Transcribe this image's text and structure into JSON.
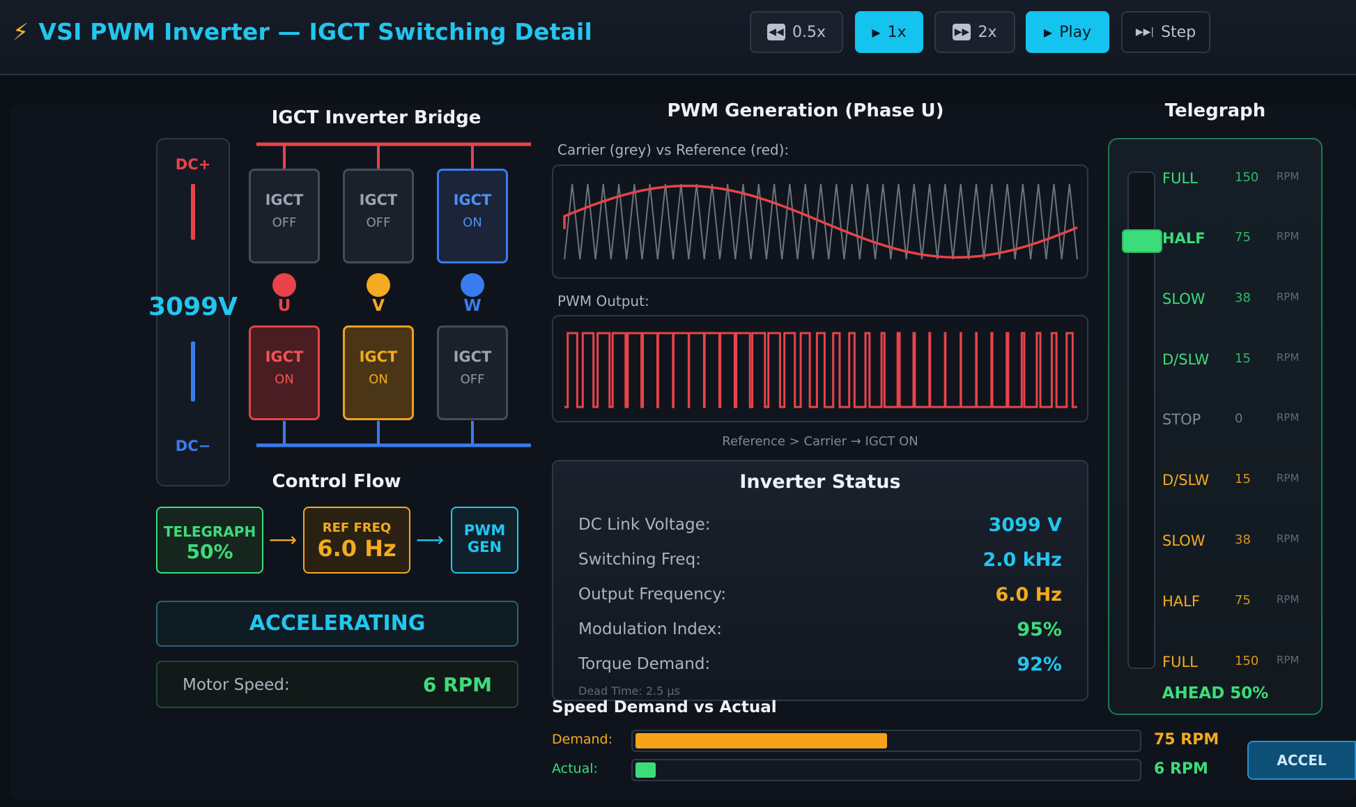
{
  "header": {
    "title": "VSI PWM Inverter — IGCT Switching Detail",
    "bolt": "⚡",
    "speed_05": "0.5x",
    "speed_1": "1x",
    "speed_2": "2x",
    "play": "Play",
    "step": "Step"
  },
  "bridge": {
    "title": "IGCT Inverter Bridge",
    "dc_plus": "DC+",
    "dc_minus": "DC−",
    "voltage": "3099V",
    "upper": [
      {
        "label": "IGCT",
        "state": "OFF"
      },
      {
        "label": "IGCT",
        "state": "OFF"
      },
      {
        "label": "IGCT",
        "state": "ON"
      }
    ],
    "lower": [
      {
        "label": "IGCT",
        "state": "ON"
      },
      {
        "label": "IGCT",
        "state": "ON"
      },
      {
        "label": "IGCT",
        "state": "OFF"
      }
    ],
    "phases": [
      "U",
      "V",
      "W"
    ]
  },
  "control_flow": {
    "title": "Control Flow",
    "telegraph_label": "TELEGRAPH",
    "telegraph_value": "50%",
    "ref_label": "REF FREQ",
    "ref_value": "6.0 Hz",
    "pwm_line1": "PWM",
    "pwm_line2": "GEN"
  },
  "state_banner": "ACCELERATING",
  "motor_speed": {
    "label": "Motor Speed:",
    "value": "6 RPM"
  },
  "pwm": {
    "title": "PWM Generation (Phase U)",
    "carrier_caption": "Carrier (grey) vs Reference (red):",
    "output_caption": "PWM Output:",
    "rule": "Reference > Carrier → IGCT ON",
    "carrier_cycles": 33,
    "modulation_index": 0.95
  },
  "status": {
    "title": "Inverter Status",
    "rows": [
      {
        "label": "DC Link Voltage:",
        "value": "3099 V"
      },
      {
        "label": "Switching Freq:",
        "value": "2.0 kHz"
      },
      {
        "label": "Output Frequency:",
        "value": "6.0 Hz"
      },
      {
        "label": "Modulation Index:",
        "value": "95%"
      },
      {
        "label": "Torque Demand:",
        "value": "92%"
      }
    ],
    "dead_time": "Dead Time: 2.5 μs"
  },
  "speed_bars": {
    "title": "Speed Demand vs Actual",
    "demand_label": "Demand:",
    "demand_value": "75 RPM",
    "demand_fraction": 0.5,
    "actual_label": "Actual:",
    "actual_value": "6 RPM",
    "actual_fraction": 0.04
  },
  "accel_button": "ACCEL",
  "telegraph": {
    "title": "Telegraph",
    "notches": [
      {
        "name": "FULL",
        "rpm": "150",
        "unit": "RPM"
      },
      {
        "name": "HALF",
        "rpm": "75",
        "unit": "RPM"
      },
      {
        "name": "SLOW",
        "rpm": "38",
        "unit": "RPM"
      },
      {
        "name": "D/SLW",
        "rpm": "15",
        "unit": "RPM"
      },
      {
        "name": "STOP",
        "rpm": "0",
        "unit": "RPM"
      },
      {
        "name": "D/SLW",
        "rpm": "15",
        "unit": "RPM"
      },
      {
        "name": "SLOW",
        "rpm": "38",
        "unit": "RPM"
      },
      {
        "name": "HALF",
        "rpm": "75",
        "unit": "RPM"
      },
      {
        "name": "FULL",
        "rpm": "150",
        "unit": "RPM"
      }
    ],
    "selected_index": 1,
    "readout": "AHEAD 50%"
  },
  "colors": {
    "cyan": "#22c6ef",
    "orange": "#f5aa1f",
    "green": "#3ddc7a",
    "red": "#e8434a",
    "blue": "#3a7cf0"
  }
}
